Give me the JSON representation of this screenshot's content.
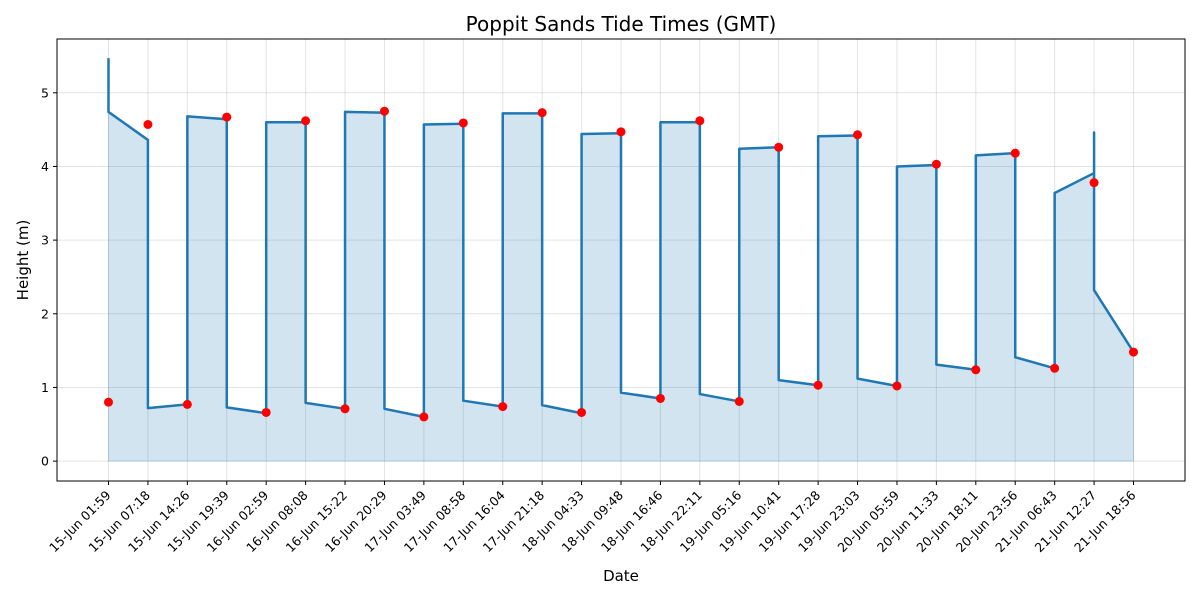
{
  "chart_data": {
    "type": "line",
    "title": "Poppit Sands Tide Times (GMT)",
    "xlabel": "Date",
    "ylabel": "Height (m)",
    "ylim": [
      -0.27,
      5.73
    ],
    "yticks": [
      0,
      1,
      2,
      3,
      4,
      5
    ],
    "grid": true,
    "categories": [
      "15-Jun 01:59",
      "15-Jun 07:18",
      "15-Jun 14:26",
      "15-Jun 19:39",
      "16-Jun 02:59",
      "16-Jun 08:08",
      "16-Jun 15:22",
      "16-Jun 20:29",
      "17-Jun 03:49",
      "17-Jun 08:58",
      "17-Jun 16:04",
      "17-Jun 21:18",
      "18-Jun 04:33",
      "18-Jun 09:48",
      "18-Jun 16:46",
      "18-Jun 22:11",
      "19-Jun 05:16",
      "19-Jun 10:41",
      "19-Jun 17:28",
      "19-Jun 23:03",
      "20-Jun 05:59",
      "20-Jun 11:33",
      "20-Jun 18:11",
      "20-Jun 23:56",
      "21-Jun 06:43",
      "21-Jun 12:27",
      "21-Jun 18:56"
    ],
    "points": [
      0.8,
      4.57,
      0.77,
      4.67,
      0.66,
      4.62,
      0.71,
      4.75,
      0.6,
      4.59,
      0.74,
      4.73,
      0.66,
      4.47,
      0.85,
      4.62,
      0.81,
      4.26,
      1.03,
      4.43,
      1.02,
      4.03,
      1.24,
      4.18,
      1.26,
      3.78,
      1.48
    ],
    "line_path": [
      [
        0,
        5.47
      ],
      [
        0,
        4.74
      ],
      [
        1,
        4.36
      ],
      [
        1,
        0.72
      ],
      [
        2,
        0.77
      ],
      [
        2,
        4.68
      ],
      [
        3,
        4.64
      ],
      [
        3,
        0.73
      ],
      [
        4,
        0.65
      ],
      [
        4,
        4.6
      ],
      [
        5,
        4.6
      ],
      [
        5,
        0.79
      ],
      [
        6,
        0.71
      ],
      [
        6,
        4.74
      ],
      [
        7,
        4.73
      ],
      [
        7,
        0.71
      ],
      [
        8,
        0.6
      ],
      [
        8,
        4.57
      ],
      [
        9,
        4.58
      ],
      [
        9,
        0.82
      ],
      [
        10,
        0.74
      ],
      [
        10,
        4.72
      ],
      [
        11,
        4.72
      ],
      [
        11,
        0.76
      ],
      [
        12,
        0.65
      ],
      [
        12,
        4.44
      ],
      [
        13,
        4.45
      ],
      [
        13,
        0.93
      ],
      [
        14,
        0.85
      ],
      [
        14,
        4.6
      ],
      [
        15,
        4.6
      ],
      [
        15,
        0.91
      ],
      [
        16,
        0.81
      ],
      [
        16,
        4.24
      ],
      [
        17,
        4.26
      ],
      [
        17,
        1.1
      ],
      [
        18,
        1.03
      ],
      [
        18,
        4.41
      ],
      [
        19,
        4.42
      ],
      [
        19,
        1.12
      ],
      [
        20,
        1.02
      ],
      [
        20,
        4.0
      ],
      [
        21,
        4.02
      ],
      [
        21,
        1.31
      ],
      [
        22,
        1.24
      ],
      [
        22,
        4.15
      ],
      [
        23,
        4.18
      ],
      [
        23,
        1.41
      ],
      [
        24,
        1.26
      ],
      [
        24,
        3.64
      ],
      [
        25,
        3.91
      ],
      [
        25,
        4.46
      ],
      [
        25,
        2.32
      ],
      [
        26,
        1.48
      ]
    ],
    "colors": {
      "line": "#1f77b4",
      "fill": "#1f77b4",
      "markers": "#ff0000"
    }
  }
}
